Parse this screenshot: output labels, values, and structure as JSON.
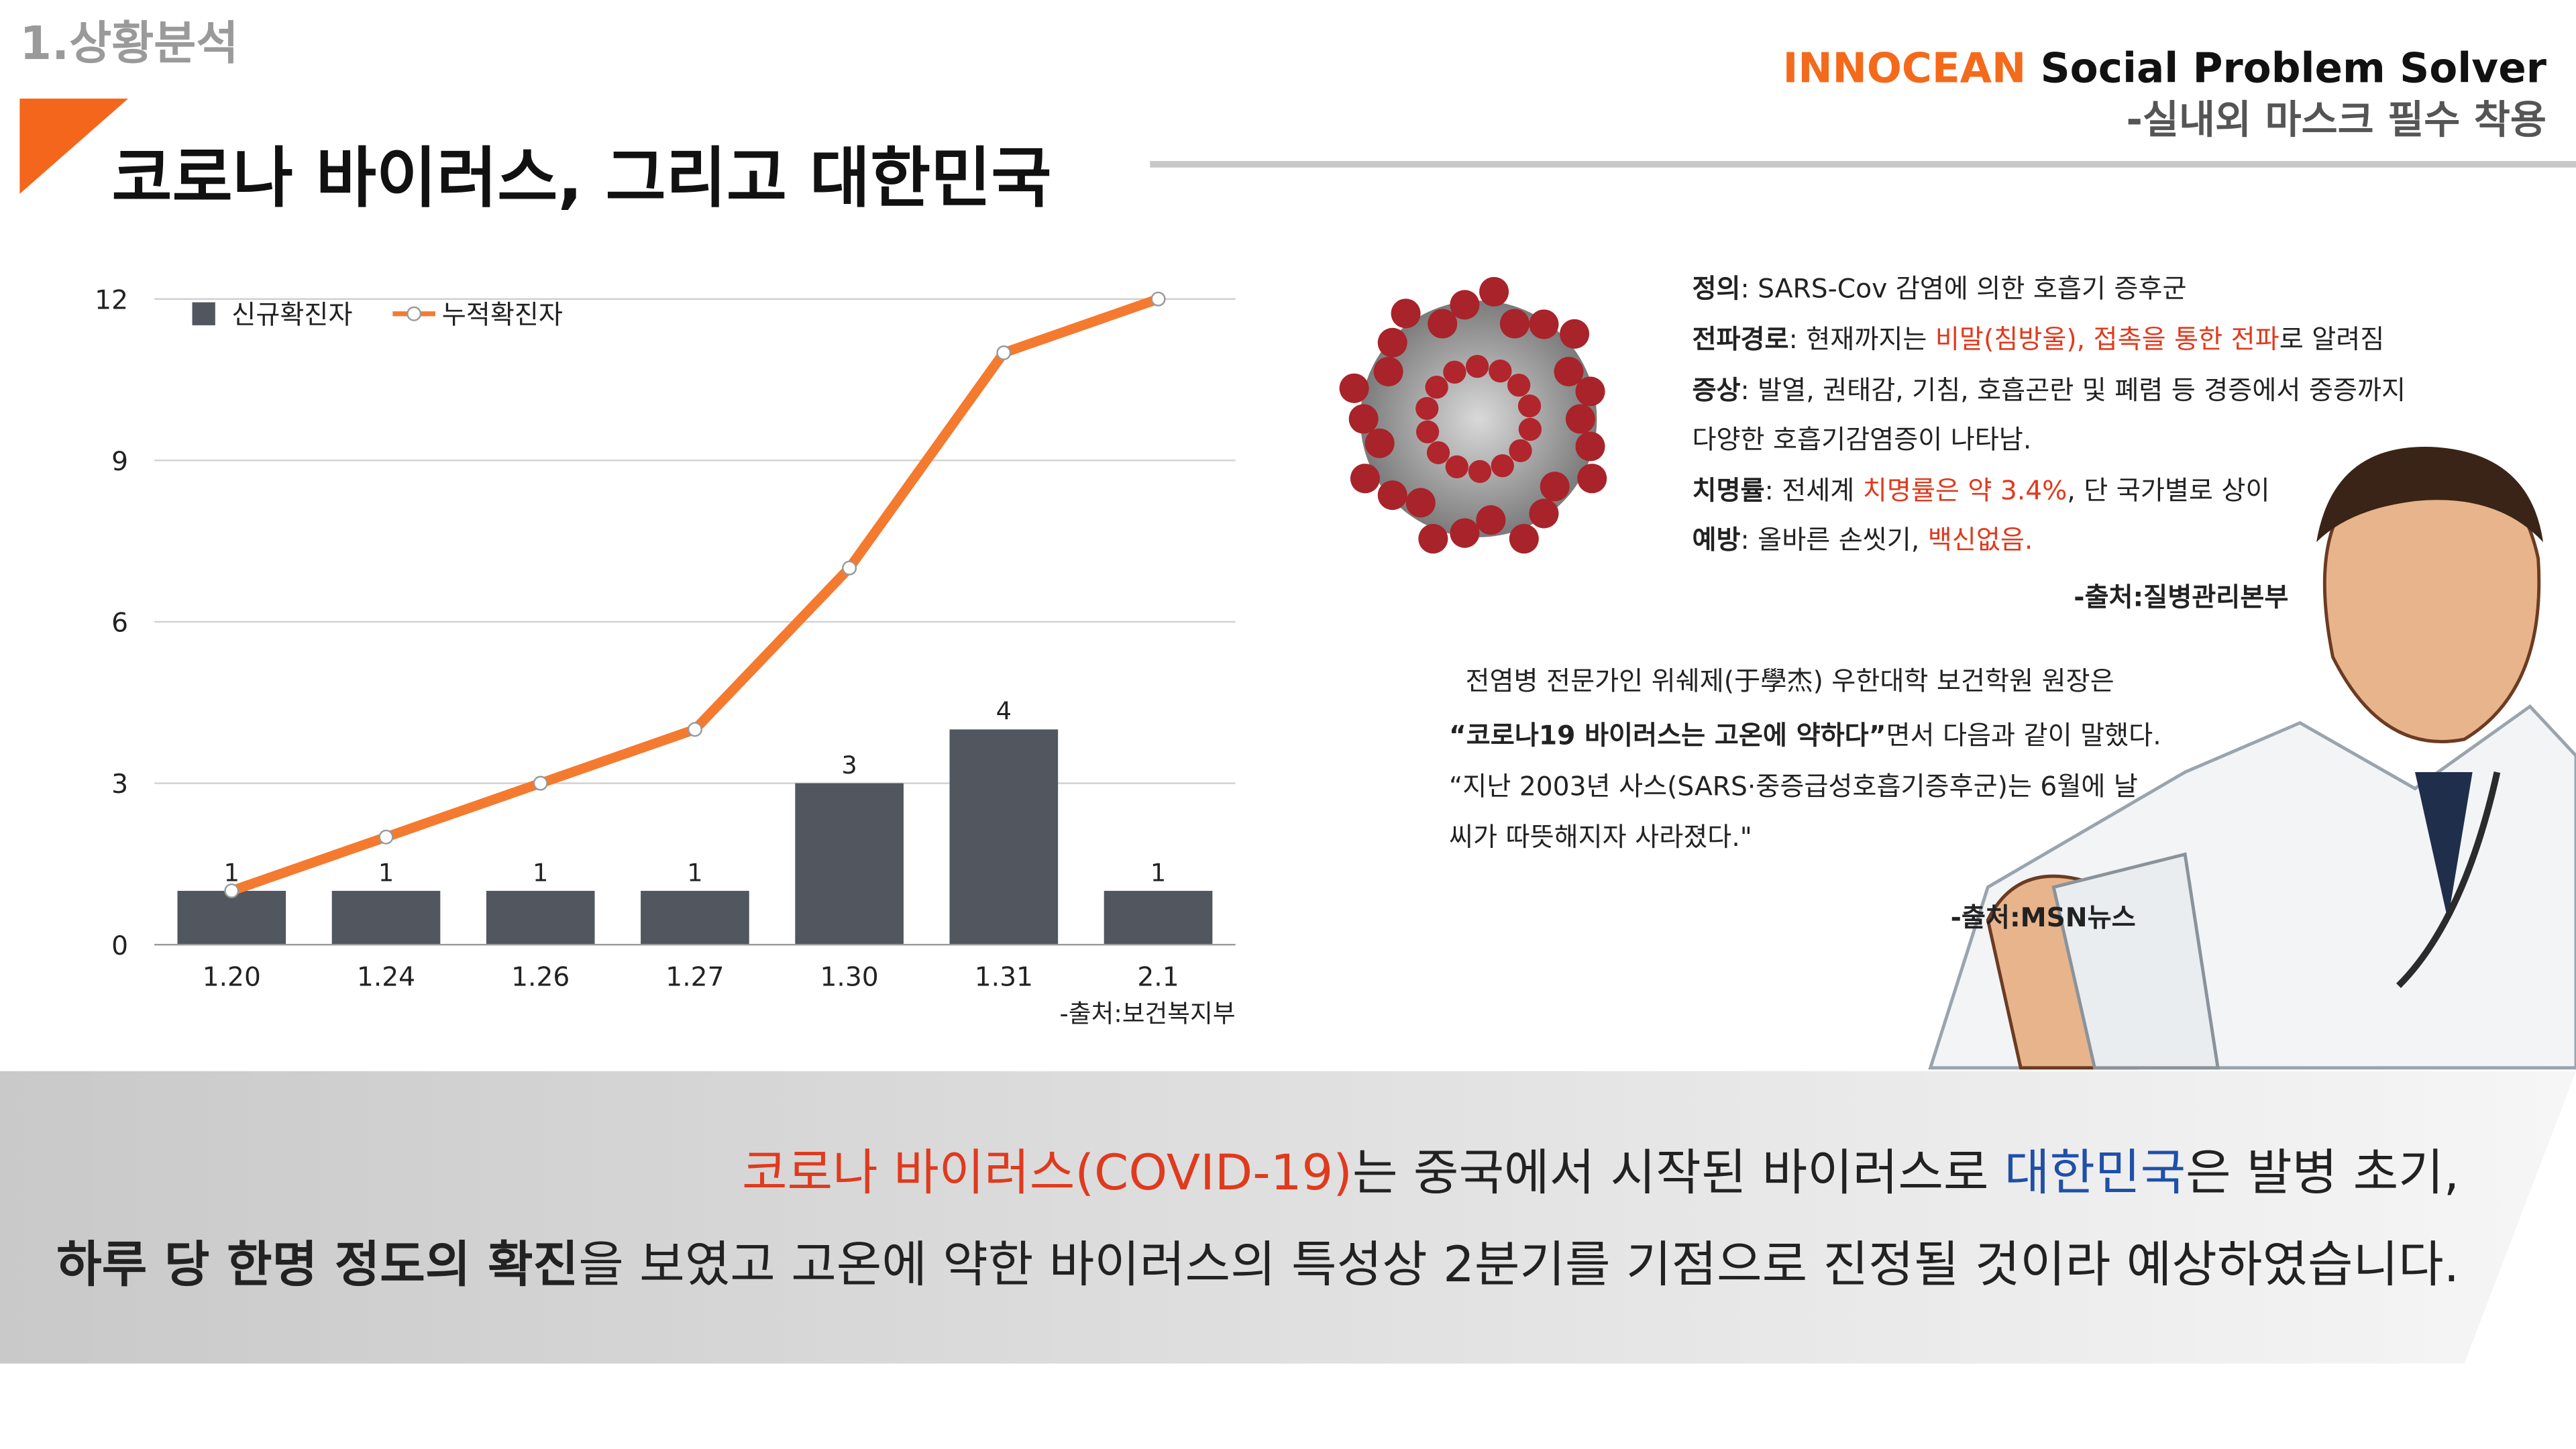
{
  "section": "1.상황분석",
  "title": "코로나 바이러스, 그리고 대한민국",
  "brand": {
    "name": "INNOCEAN",
    "tagline": " Social Problem Solver",
    "subtitle": "-실내외 마스크 필수 착용"
  },
  "chart_data": {
    "type": "bar",
    "categories": [
      "1.20",
      "1.24",
      "1.26",
      "1.27",
      "1.30",
      "1.31",
      "2.1"
    ],
    "series": [
      {
        "name": "신규확진자",
        "type": "bar",
        "color": "#52565e",
        "values": [
          1,
          1,
          1,
          1,
          3,
          4,
          1
        ]
      },
      {
        "name": "누적확진자",
        "type": "line",
        "color": "#f47a30",
        "values": [
          1,
          2,
          3,
          4,
          7,
          11,
          12
        ]
      }
    ],
    "ylim": [
      0,
      12
    ],
    "yticks": [
      0,
      3,
      6,
      9,
      12
    ],
    "grid": true,
    "legend": "top-left",
    "source": "-출처:보건복지부"
  },
  "info": {
    "lines": [
      [
        "정의",
        ": SARS-Cov 감염에 의한 호흡기 증후군"
      ],
      [
        "전파경로",
        ": 현재까지는 ",
        "비말(침방울), 접촉을 통한 전파",
        "로 알려짐"
      ],
      [
        "증상",
        ": 발열, 권태감, 기침, 호흡곤란 및 폐렴 등 경증에서 중증까지"
      ],
      [
        "",
        "다양한 호흡기감염증이 나타남."
      ],
      [
        "치명률",
        ": 전세계 ",
        "치명률은 약 3.4%",
        ", 단 국가별로 상이"
      ],
      [
        "예방",
        ": 올바른 손씻기, ",
        "백신없음."
      ]
    ],
    "source": "-출처:질병관리본부"
  },
  "quote": {
    "lines": [
      "전염병 전문가인 위쉐제(于學杰) 우한대학 보건학원 원장은",
      [
        "“코로나19 바이러스는 고온에 약하다”",
        "면서 다음과 같이 말했다."
      ],
      "“지난 2003년 사스(SARS·중증급성호흡기증후군)는 6월에 날",
      "씨가 따뜻해지자 사라졌다.\""
    ],
    "source": "-출처:MSN뉴스"
  },
  "summary": {
    "line1": [
      "코로나 바이러스(COVID-19)",
      "는 중국에서 시작된 바이러스로 ",
      "대한민국",
      "은 발병 초기,"
    ],
    "line2": [
      "하루 당 한명 정도의 확진",
      "을 보였고 고온에 약한 바이러스의 특성상 2분기를 기점으로 진정될 것이라 예상하였습니다."
    ]
  }
}
